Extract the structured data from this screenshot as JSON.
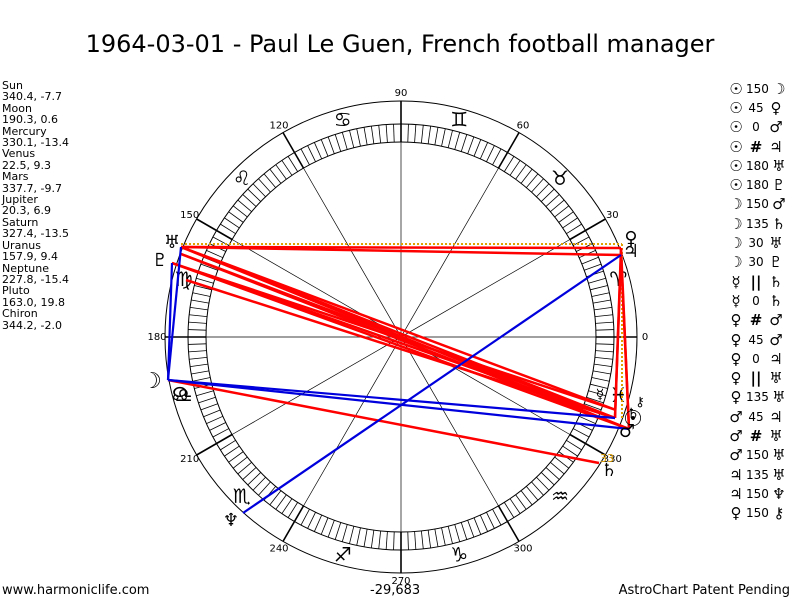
{
  "header": {
    "title": "1964-03-01 - Paul Le Guen, French football manager"
  },
  "planets": [
    {
      "name": "Sun",
      "coords": "340.4, -7.7"
    },
    {
      "name": "Moon",
      "coords": "190.3, 0.6"
    },
    {
      "name": "Mercury",
      "coords": "330.1, -13.4"
    },
    {
      "name": "Venus",
      "coords": "22.5, 9.3"
    },
    {
      "name": "Mars",
      "coords": "337.7, -9.7"
    },
    {
      "name": "Jupiter",
      "coords": "20.3, 6.9"
    },
    {
      "name": "Saturn",
      "coords": "327.4, -13.5"
    },
    {
      "name": "Uranus",
      "coords": "157.9, 9.4"
    },
    {
      "name": "Neptune",
      "coords": "227.8, -15.4"
    },
    {
      "name": "Pluto",
      "coords": "163.0, 19.8"
    },
    {
      "name": "Chiron",
      "coords": "344.2, -2.0"
    }
  ],
  "aspects": [
    {
      "p1": "☉",
      "asp": "150",
      "p2": "☽"
    },
    {
      "p1": "☉",
      "asp": "45",
      "p2": "♀"
    },
    {
      "p1": "☉",
      "asp": "0",
      "p2": "♂"
    },
    {
      "p1": "☉",
      "asp": "#",
      "p2": "♃"
    },
    {
      "p1": "☉",
      "asp": "180",
      "p2": "♅"
    },
    {
      "p1": "☉",
      "asp": "180",
      "p2": "♇"
    },
    {
      "p1": "☽",
      "asp": "150",
      "p2": "♂"
    },
    {
      "p1": "☽",
      "asp": "135",
      "p2": "♄"
    },
    {
      "p1": "☽",
      "asp": "30",
      "p2": "♅"
    },
    {
      "p1": "☽",
      "asp": "30",
      "p2": "♇"
    },
    {
      "p1": "☿",
      "asp": "||",
      "p2": "♄"
    },
    {
      "p1": "☿",
      "asp": "0",
      "p2": "♄"
    },
    {
      "p1": "♀",
      "asp": "#",
      "p2": "♂"
    },
    {
      "p1": "♀",
      "asp": "45",
      "p2": "♂"
    },
    {
      "p1": "♀",
      "asp": "0",
      "p2": "♃"
    },
    {
      "p1": "♀",
      "asp": "||",
      "p2": "♅"
    },
    {
      "p1": "♀",
      "asp": "135",
      "p2": "♅"
    },
    {
      "p1": "♂",
      "asp": "45",
      "p2": "♃"
    },
    {
      "p1": "♂",
      "asp": "#",
      "p2": "♅"
    },
    {
      "p1": "♂",
      "asp": "150",
      "p2": "♅"
    },
    {
      "p1": "♃",
      "asp": "135",
      "p2": "♅"
    },
    {
      "p1": "♃",
      "asp": "150",
      "p2": "♆"
    },
    {
      "p1": "♀",
      "asp": "150",
      "p2": "⚷"
    }
  ],
  "wheel": {
    "degree_labels": [
      "90",
      "60",
      "30",
      "0",
      "330",
      "300",
      "270",
      "240",
      "210",
      "180",
      "150",
      "120"
    ],
    "sign_glyphs": [
      "♈",
      "♉",
      "♊",
      "♋",
      "♌",
      "♍",
      "♎",
      "♏",
      "♐",
      "♑",
      "♒",
      "♓"
    ],
    "planet_glyphs": [
      "☉",
      "☽",
      "☿",
      "♀",
      "♂",
      "♃",
      "♄",
      "♅",
      "♆",
      "♇",
      "⚷",
      "☊"
    ],
    "extra_label": "33",
    "sign_color": "#000000",
    "aspect_red": "#ff0000",
    "aspect_blue": "#0000dd",
    "dotted_color": "#e0a000"
  },
  "footer": {
    "site": "www.harmoniclife.com",
    "code": "-29,683",
    "notice": "AstroChart Patent Pending"
  }
}
